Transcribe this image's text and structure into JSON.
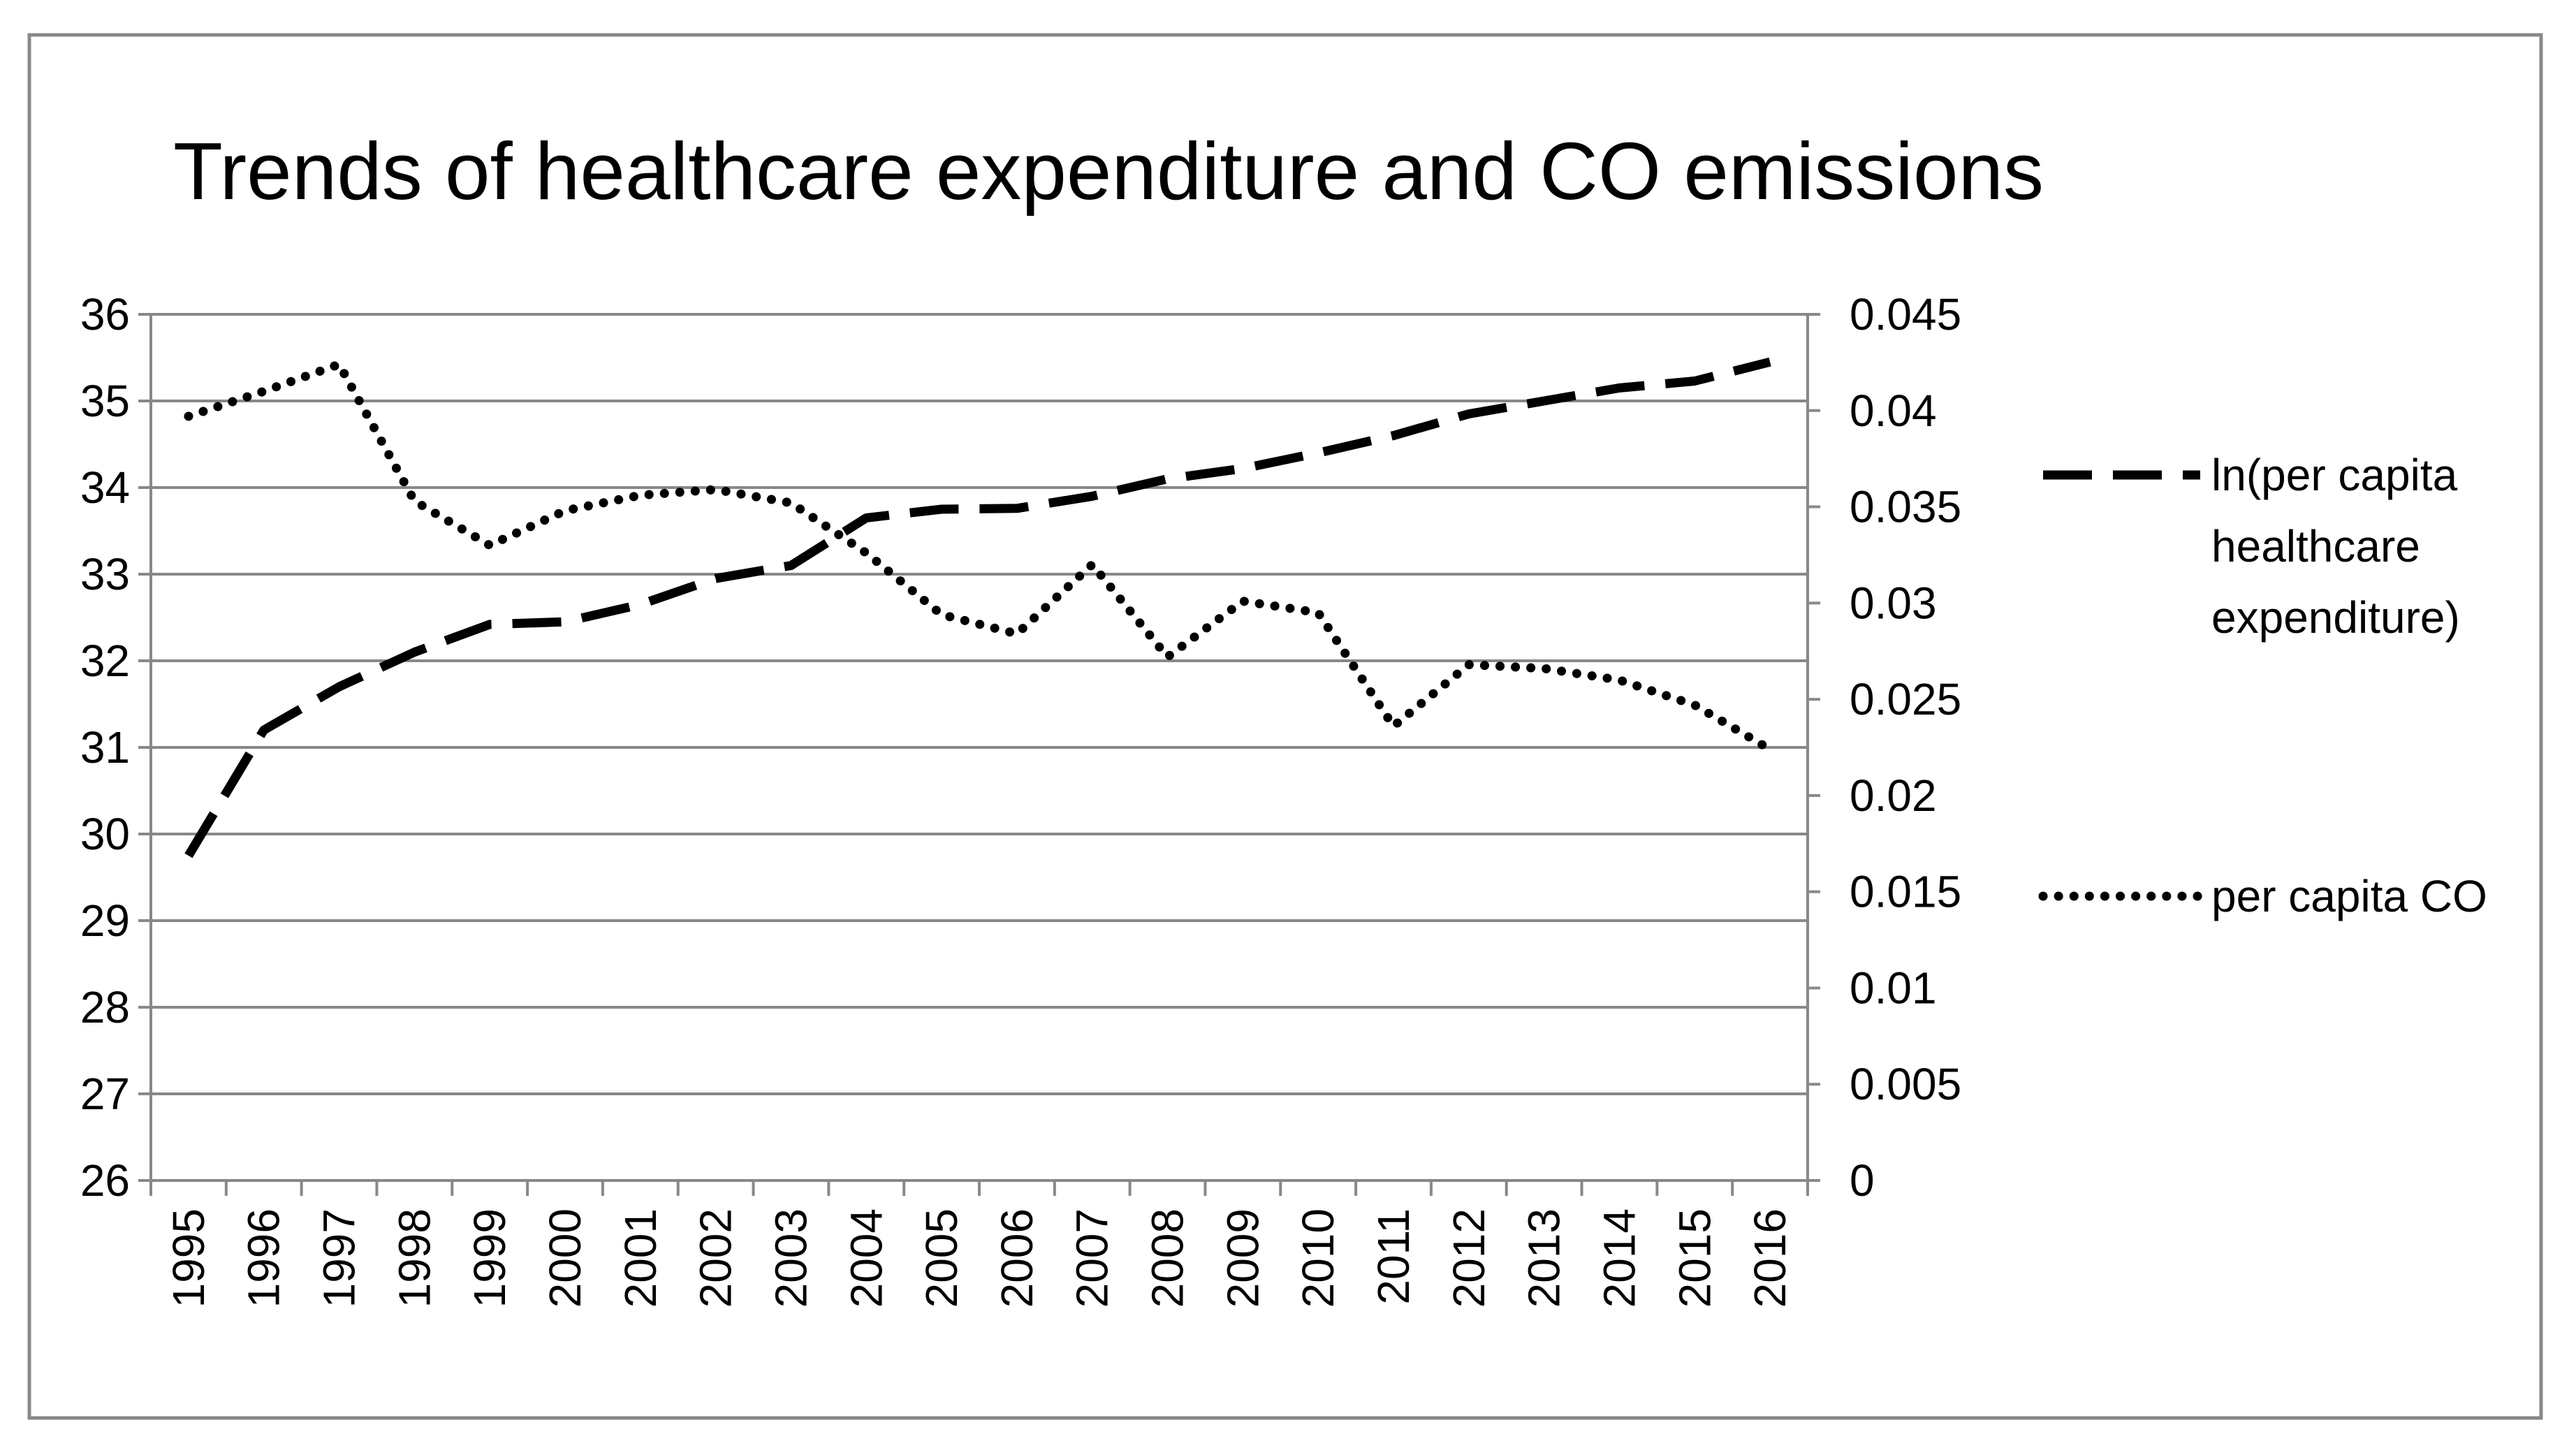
{
  "chart_data": {
    "type": "line",
    "title": "Trends of healthcare expenditure and CO emissions",
    "categories": [
      "1995",
      "1996",
      "1997",
      "1998",
      "1999",
      "2000",
      "2001",
      "2002",
      "2003",
      "2004",
      "2005",
      "2006",
      "2007",
      "2008",
      "2009",
      "2010",
      "2011",
      "2012",
      "2013",
      "2014",
      "2015",
      "2016"
    ],
    "y_left": {
      "range": [
        26,
        36
      ],
      "ticks": [
        "26",
        "27",
        "28",
        "29",
        "30",
        "31",
        "32",
        "33",
        "34",
        "35",
        "36"
      ]
    },
    "y_right": {
      "range": [
        0,
        0.045
      ],
      "ticks": [
        "0",
        "0.005",
        "0.01",
        "0.015",
        "0.02",
        "0.025",
        "0.03",
        "0.035",
        "0.04",
        "0.045"
      ]
    },
    "grid": true,
    "legend_position": "right",
    "series": [
      {
        "name": "ln(per capita healthcare expenditure)",
        "name_lines": [
          "ln(per capita",
          "healthcare",
          "expenditure)"
        ],
        "axis": "left",
        "style": "dashed",
        "values": [
          29.75,
          31.2,
          31.7,
          32.1,
          32.42,
          32.45,
          32.65,
          32.95,
          33.1,
          33.65,
          33.75,
          33.76,
          33.9,
          34.1,
          34.22,
          34.4,
          34.6,
          34.85,
          35.0,
          35.15,
          35.23,
          35.45
        ]
      },
      {
        "name": "per capita CO",
        "axis": "right",
        "style": "dotted",
        "values": [
          0.0397,
          0.041,
          0.0424,
          0.0353,
          0.033,
          0.0348,
          0.0356,
          0.0359,
          0.0352,
          0.0326,
          0.0294,
          0.0284,
          0.032,
          0.0272,
          0.0301,
          0.0295,
          0.0236,
          0.0268,
          0.0266,
          0.026,
          0.0247,
          0.0224
        ]
      }
    ],
    "colors": {
      "line": "#000000",
      "grid": "#888888",
      "frame": "#888888"
    }
  }
}
